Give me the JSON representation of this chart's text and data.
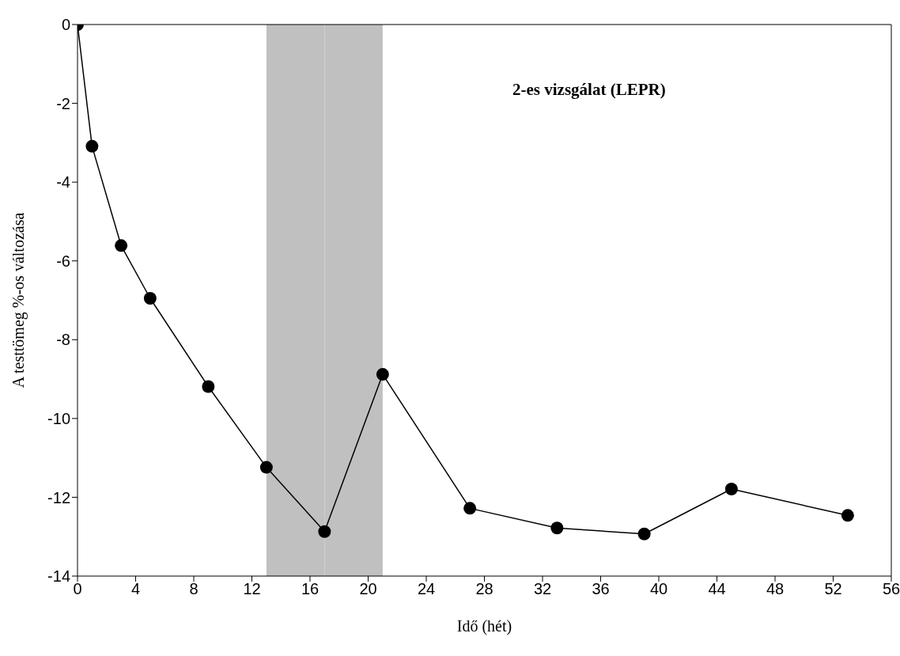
{
  "chart_data": {
    "type": "line",
    "xlabel": "Idő (hét)",
    "ylabel": "A testtömeg %-os változása",
    "annotations": [
      "2-es vizsgálat (LEPR)"
    ],
    "x": [
      0,
      1,
      3,
      5,
      9,
      13,
      17,
      21,
      27,
      33,
      39,
      45,
      53
    ],
    "series": [
      {
        "color": "#000000",
        "values": [
          0,
          -3.09,
          -5.61,
          -6.95,
          -9.19,
          -11.24,
          -12.87,
          -8.88,
          -12.28,
          -12.78,
          -12.93,
          -11.79,
          -12.46
        ]
      }
    ],
    "xlim": [
      0,
      56
    ],
    "xticks": [
      0,
      4,
      8,
      12,
      16,
      20,
      24,
      28,
      32,
      36,
      40,
      44,
      48,
      52,
      56
    ],
    "ylim": [
      -14,
      0
    ],
    "yticks": [
      -14,
      -12,
      -10,
      -8,
      -6,
      -4,
      -2,
      0
    ],
    "bands": [
      {
        "axis": "x",
        "from": 13,
        "to": 17,
        "color": "#c0c0c0"
      },
      {
        "axis": "x",
        "from": 17,
        "to": 21,
        "color": "#c0c0c0"
      }
    ],
    "grid": false,
    "legend": false,
    "marker": "circle",
    "line_style": "solid"
  }
}
